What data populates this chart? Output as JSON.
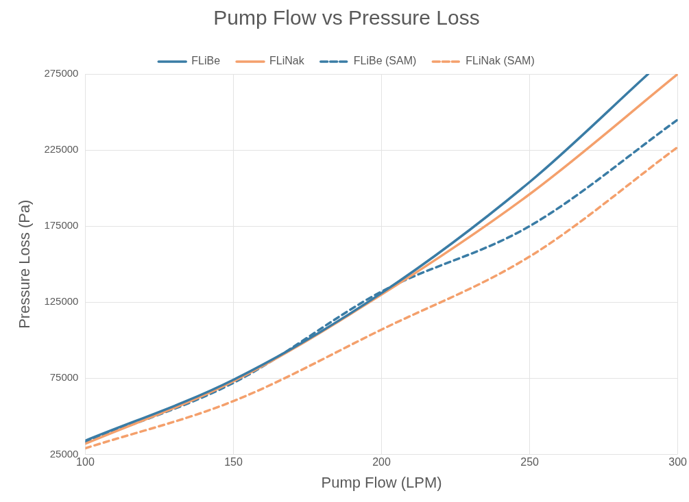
{
  "chart_data": {
    "type": "line",
    "title": "Pump Flow vs Pressure Loss",
    "xlabel": "Pump Flow (LPM)",
    "ylabel": "Pressure Loss (Pa)",
    "xlim": [
      100,
      300
    ],
    "xticks": [
      100,
      150,
      200,
      250,
      300
    ],
    "ylim": [
      25000,
      275000
    ],
    "yticks": [
      25000,
      75000,
      125000,
      175000,
      225000,
      275000
    ],
    "grid": true,
    "legend": "top",
    "marker": "none",
    "series": [
      {
        "name": "FLiBe",
        "color": "#3a7ca5",
        "line_style": "solid",
        "x": [
          100,
          150,
          200,
          250,
          290
        ],
        "values": [
          34000,
          74000,
          131000,
          204000,
          275000
        ]
      },
      {
        "name": "FLiNak",
        "color": "#f4a06c",
        "line_style": "solid",
        "x": [
          100,
          150,
          200,
          250,
          300
        ],
        "values": [
          32000,
          73000,
          130000,
          196000,
          275000
        ]
      },
      {
        "name": "FLiBe (SAM)",
        "color": "#3a7ca5",
        "line_style": "dashed",
        "x": [
          100,
          150,
          200,
          250,
          300
        ],
        "values": [
          33000,
          72000,
          132000,
          175000,
          245000
        ]
      },
      {
        "name": "FLiNak (SAM)",
        "color": "#f4a06c",
        "line_style": "dashed",
        "x": [
          100,
          150,
          200,
          250,
          300
        ],
        "values": [
          29000,
          60000,
          107000,
          155000,
          227000
        ]
      }
    ]
  }
}
